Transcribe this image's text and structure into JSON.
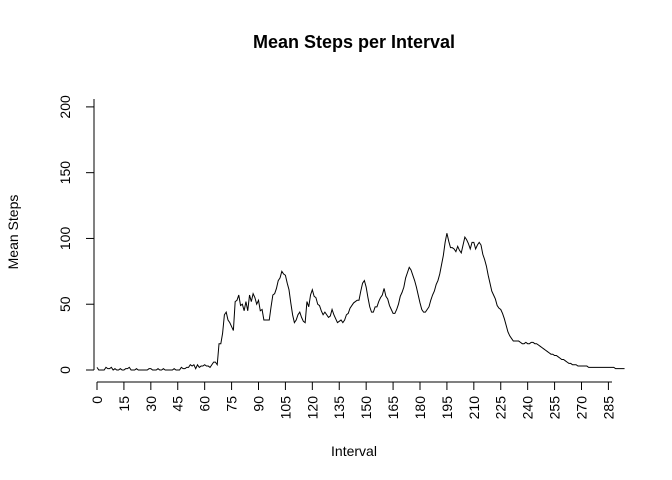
{
  "chart_data": {
    "type": "line",
    "title": "Mean Steps per Interval",
    "xlabel": "Interval",
    "ylabel": "Mean Steps",
    "xlim": [
      0,
      287
    ],
    "ylim": [
      0,
      206
    ],
    "xticks": [
      0,
      15,
      30,
      45,
      60,
      75,
      90,
      105,
      120,
      135,
      150,
      165,
      180,
      195,
      210,
      225,
      240,
      255,
      270,
      285
    ],
    "yticks": [
      0,
      50,
      100,
      150,
      200
    ],
    "grid": false,
    "legend": "none",
    "series": [
      {
        "values": [
          2,
          0,
          0,
          0,
          0,
          2,
          1,
          1,
          2,
          0,
          1,
          0,
          0,
          1,
          0,
          0,
          1,
          1,
          2,
          0,
          0,
          0,
          1,
          0,
          0,
          0,
          0,
          0,
          0,
          1,
          1,
          0,
          0,
          0,
          1,
          0,
          0,
          1,
          0,
          0,
          0,
          0,
          0,
          1,
          0,
          0,
          0,
          2,
          1,
          1,
          2,
          2,
          4,
          3,
          4,
          1,
          4,
          2,
          3,
          3,
          4,
          3,
          3,
          2,
          4,
          6,
          6,
          4,
          20,
          20,
          28,
          42,
          44,
          38,
          36,
          33,
          30,
          52,
          53,
          57,
          49,
          50,
          45,
          52,
          45,
          57,
          52,
          58,
          55,
          50,
          53,
          45,
          46,
          38,
          38,
          38,
          38,
          48,
          57,
          58,
          62,
          68,
          70,
          75,
          73,
          72,
          66,
          61,
          51,
          42,
          36,
          38,
          42,
          44,
          40,
          37,
          36,
          52,
          48,
          57,
          61,
          56,
          55,
          50,
          49,
          45,
          42,
          44,
          42,
          40,
          41,
          46,
          42,
          39,
          36,
          37,
          38,
          36,
          38,
          42,
          43,
          47,
          49,
          51,
          52,
          53,
          53,
          60,
          66,
          68,
          63,
          55,
          48,
          44,
          44,
          48,
          48,
          52,
          55,
          57,
          62,
          56,
          54,
          49,
          46,
          43,
          43,
          46,
          50,
          56,
          59,
          63,
          70,
          74,
          78,
          76,
          72,
          68,
          63,
          57,
          51,
          46,
          44,
          44,
          46,
          48,
          53,
          57,
          60,
          65,
          68,
          73,
          80,
          87,
          97,
          104,
          98,
          93,
          93,
          92,
          90,
          94,
          91,
          89,
          95,
          101,
          99,
          96,
          92,
          97,
          97,
          92,
          95,
          97,
          95,
          88,
          84,
          79,
          72,
          66,
          60,
          57,
          54,
          49,
          47,
          46,
          43,
          39,
          34,
          29,
          26,
          24,
          22,
          22,
          22,
          22,
          21,
          20,
          20,
          21,
          20,
          20,
          21,
          21,
          20,
          20,
          19,
          18,
          17,
          16,
          15,
          14,
          13,
          12,
          12,
          11,
          11,
          10,
          9,
          8,
          8,
          7,
          6,
          5,
          5,
          4,
          4,
          4,
          3,
          3,
          3,
          3,
          3,
          3,
          2,
          2,
          2,
          2,
          2,
          2,
          2,
          2,
          2,
          2,
          2,
          2,
          2,
          2,
          2,
          1,
          1,
          1,
          1,
          1,
          1
        ]
      }
    ]
  }
}
